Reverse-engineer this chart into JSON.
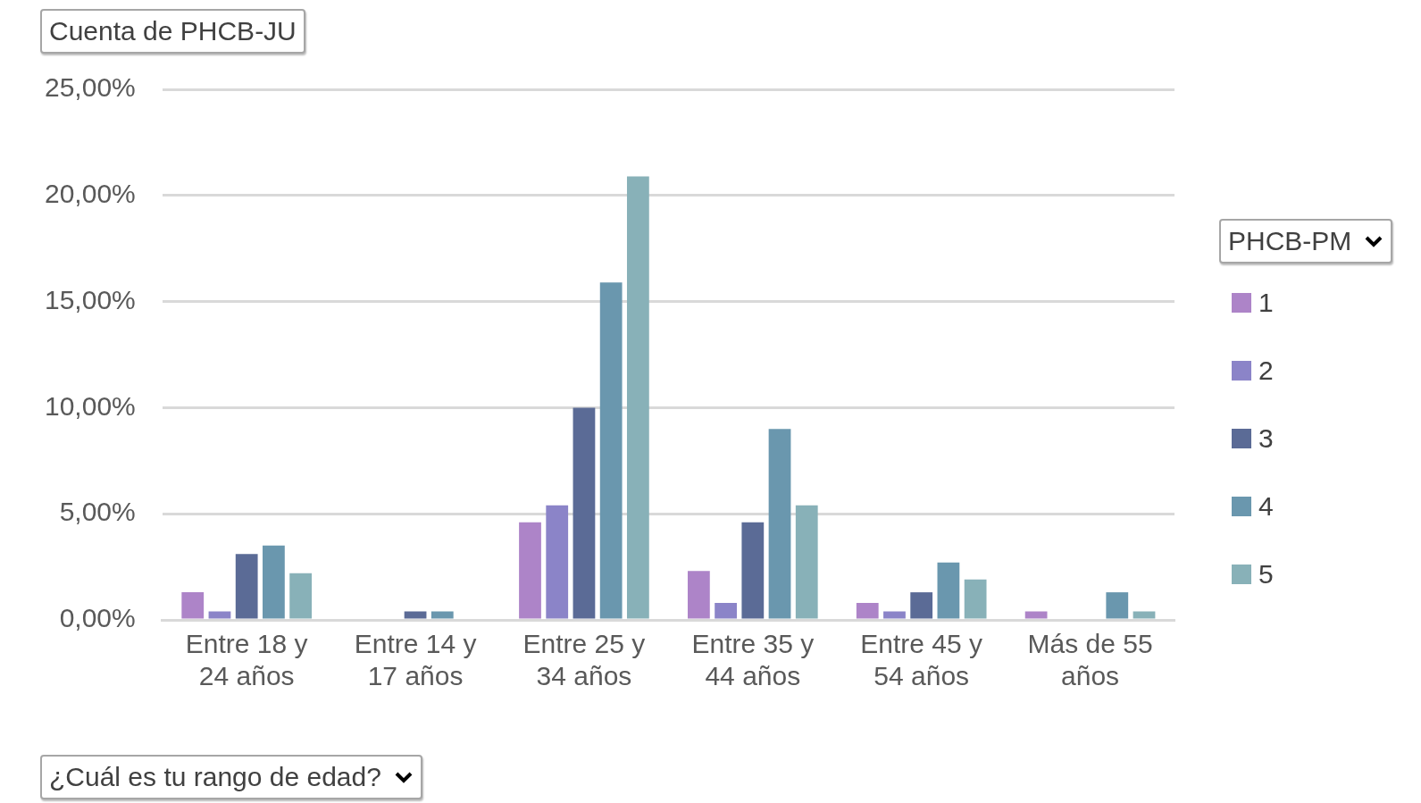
{
  "chart_data": {
    "type": "bar",
    "title": "Cuenta de PHCB-JU",
    "xlabel": "¿Cuál es tu rango de edad?",
    "legend_title": "PHCB-PM",
    "categories": [
      "Entre 18 y 24 años",
      "Entre 14 y 17 años",
      "Entre 25 y 34 años",
      "Entre 35 y 44 años",
      "Entre 45 y 54 años",
      "Más de 55 años"
    ],
    "series": [
      {
        "name": "1",
        "color": "#ad84c8",
        "values": [
          1.3,
          null,
          4.6,
          2.3,
          0.8,
          0.4
        ]
      },
      {
        "name": "2",
        "color": "#8b84c8",
        "values": [
          0.4,
          null,
          5.4,
          0.8,
          0.4,
          null
        ]
      },
      {
        "name": "3",
        "color": "#5b6b96",
        "values": [
          3.1,
          0.4,
          10.0,
          4.6,
          1.3,
          null
        ]
      },
      {
        "name": "4",
        "color": "#6a97ae",
        "values": [
          3.5,
          0.4,
          15.9,
          9.0,
          2.7,
          1.3
        ]
      },
      {
        "name": "5",
        "color": "#88b1b8",
        "values": [
          2.2,
          null,
          20.9,
          5.4,
          1.9,
          0.4
        ]
      }
    ],
    "ylim": [
      0,
      25
    ],
    "yticks": [
      {
        "value": 0,
        "label": "0,00%"
      },
      {
        "value": 5,
        "label": "5,00%"
      },
      {
        "value": 10,
        "label": "10,00%"
      },
      {
        "value": 15,
        "label": "15,00%"
      },
      {
        "value": 20,
        "label": "20,00%"
      },
      {
        "value": 25,
        "label": "25,00%"
      }
    ],
    "grid": "y",
    "legend": "right"
  }
}
